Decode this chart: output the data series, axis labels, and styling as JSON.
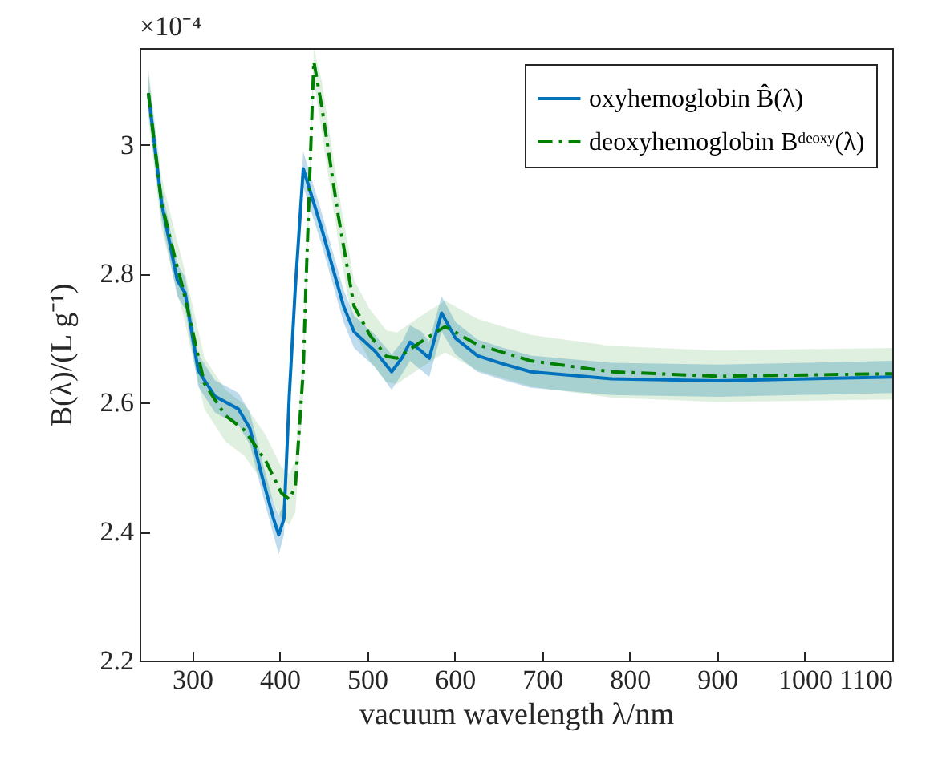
{
  "chart_data": {
    "type": "line",
    "xlabel": "vacuum wavelength λ/nm",
    "ylabel": "B(λ)/(L g⁻¹)",
    "annotations": [
      "×10⁻⁴"
    ],
    "xlim": [
      240,
      1100
    ],
    "xticks": [
      300,
      400,
      500,
      600,
      700,
      800,
      900,
      1000,
      1100
    ],
    "ylim": [
      2.2,
      3.15
    ],
    "yticks": [
      2.2,
      2.4,
      2.6,
      2.8,
      3
    ],
    "grid": false,
    "legend": "top right",
    "marker": "none",
    "series": [
      {
        "name": "oxyhemoglobin B̂(λ)",
        "color": "#0072bd",
        "line_style": "solid",
        "x": [
          250,
          265,
          283,
          292,
          307,
          326,
          353,
          366,
          381,
          393,
          399,
          405,
          411,
          418,
          427,
          448,
          473,
          485,
          509,
          528,
          540,
          549,
          562,
          571,
          585,
          601,
          626,
          656,
          687,
          779,
          901,
          1100
        ],
        "values": [
          3.08,
          2.91,
          2.79,
          2.77,
          2.65,
          2.61,
          2.59,
          2.56,
          2.48,
          2.42,
          2.395,
          2.42,
          2.61,
          2.78,
          2.963,
          2.87,
          2.75,
          2.71,
          2.68,
          2.648,
          2.67,
          2.694,
          2.68,
          2.669,
          2.739,
          2.7,
          2.673,
          2.66,
          2.648,
          2.637,
          2.634,
          2.64
        ],
        "lower": [
          3.05,
          2.885,
          2.765,
          2.745,
          2.625,
          2.585,
          2.565,
          2.535,
          2.455,
          2.395,
          2.365,
          2.395,
          2.585,
          2.755,
          2.935,
          2.845,
          2.725,
          2.685,
          2.655,
          2.62,
          2.645,
          2.665,
          2.65,
          2.64,
          2.71,
          2.675,
          2.648,
          2.635,
          2.623,
          2.612,
          2.609,
          2.615
        ],
        "upper": [
          3.11,
          2.935,
          2.815,
          2.795,
          2.675,
          2.635,
          2.615,
          2.585,
          2.505,
          2.445,
          2.425,
          2.445,
          2.635,
          2.805,
          2.99,
          2.895,
          2.775,
          2.735,
          2.705,
          2.675,
          2.695,
          2.72,
          2.71,
          2.695,
          2.765,
          2.725,
          2.698,
          2.685,
          2.673,
          2.662,
          2.659,
          2.665
        ]
      },
      {
        "name": "deoxyhemoglobin Bᵈᵉᵒˣʸ(λ)",
        "color": "#008000",
        "line_style": "dashed",
        "x": [
          250,
          265,
          283,
          289,
          314,
          338,
          360,
          384,
          402,
          411,
          418,
          427,
          430,
          439,
          448,
          467,
          485,
          503,
          522,
          534,
          561,
          589,
          626,
          687,
          779,
          901,
          1100
        ],
        "values": [
          3.08,
          2.91,
          2.81,
          2.78,
          2.63,
          2.58,
          2.557,
          2.51,
          2.46,
          2.45,
          2.47,
          2.65,
          2.78,
          3.13,
          3.06,
          2.89,
          2.75,
          2.705,
          2.672,
          2.669,
          2.694,
          2.718,
          2.69,
          2.665,
          2.648,
          2.641,
          2.645
        ],
        "lower": [
          3.04,
          2.87,
          2.77,
          2.74,
          2.59,
          2.54,
          2.517,
          2.47,
          2.42,
          2.41,
          2.43,
          2.61,
          2.75,
          3.1,
          3.02,
          2.85,
          2.71,
          2.665,
          2.632,
          2.629,
          2.654,
          2.678,
          2.65,
          2.625,
          2.608,
          2.601,
          2.605
        ],
        "upper": [
          3.12,
          2.95,
          2.85,
          2.82,
          2.67,
          2.62,
          2.597,
          2.55,
          2.5,
          2.49,
          2.51,
          2.69,
          2.81,
          3.15,
          3.1,
          2.93,
          2.79,
          2.745,
          2.712,
          2.709,
          2.734,
          2.758,
          2.73,
          2.705,
          2.688,
          2.681,
          2.685
        ]
      }
    ]
  }
}
